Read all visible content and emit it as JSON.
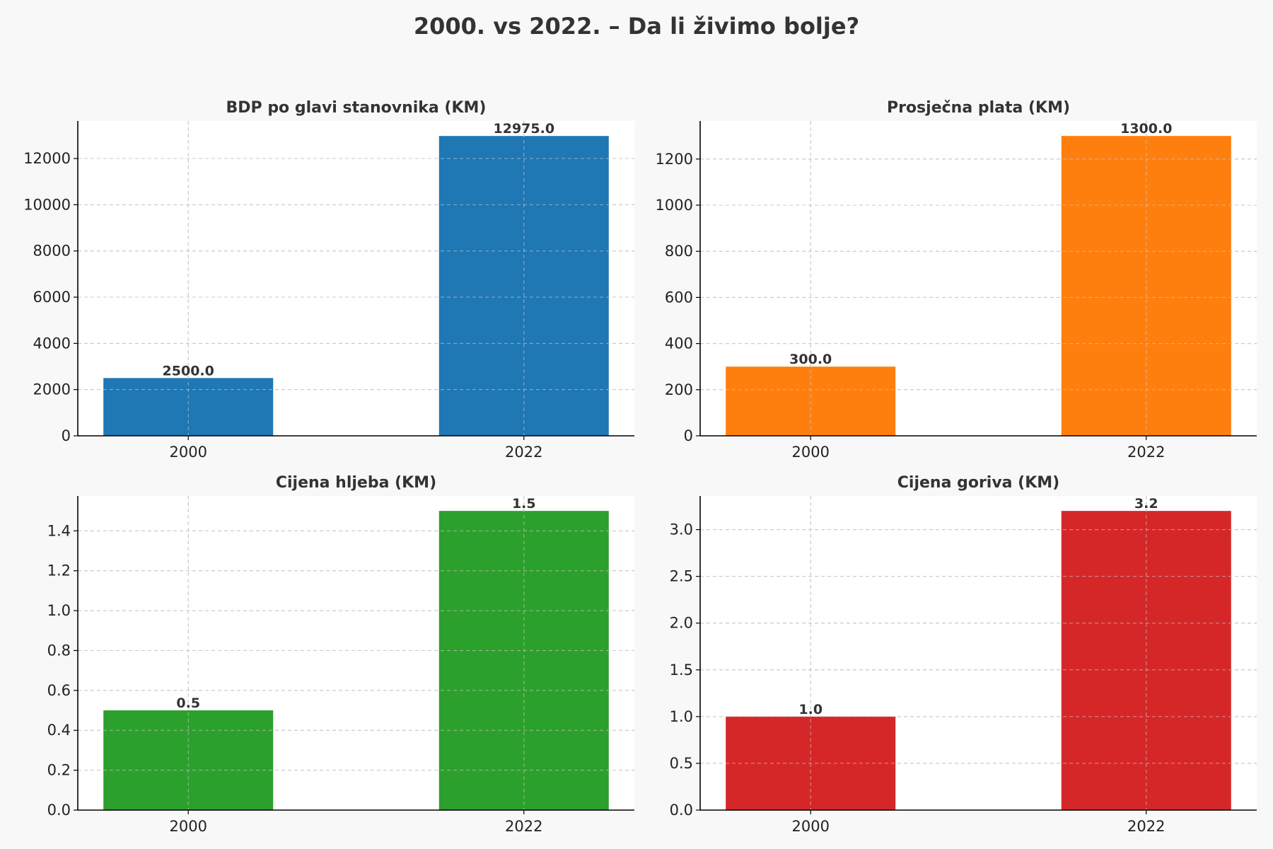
{
  "figure": {
    "title": "2000. vs 2022. – Da li živimo bolje?"
  },
  "chart_data": [
    {
      "type": "bar",
      "title": "BDP po glavi stanovnika (KM)",
      "categories": [
        "2000",
        "2022"
      ],
      "values": [
        2500.0,
        12975.0
      ],
      "value_labels": [
        "2500.0",
        "12975.0"
      ],
      "xlabel": "",
      "ylabel": "",
      "ylim": [
        0,
        13624
      ],
      "yticks": [
        0,
        2000,
        4000,
        6000,
        8000,
        10000,
        12000
      ],
      "ytick_labels": [
        "0",
        "2000",
        "4000",
        "6000",
        "8000",
        "10000",
        "12000"
      ],
      "color": "#1f77b4",
      "grid": true
    },
    {
      "type": "bar",
      "title": "Prosječna plata (KM)",
      "categories": [
        "2000",
        "2022"
      ],
      "values": [
        300.0,
        1300.0
      ],
      "value_labels": [
        "300.0",
        "1300.0"
      ],
      "xlabel": "",
      "ylabel": "",
      "ylim": [
        0,
        1365
      ],
      "yticks": [
        0,
        200,
        400,
        600,
        800,
        1000,
        1200
      ],
      "ytick_labels": [
        "0",
        "200",
        "400",
        "600",
        "800",
        "1000",
        "1200"
      ],
      "color": "#ff7f0e",
      "grid": true
    },
    {
      "type": "bar",
      "title": "Cijena hljeba (KM)",
      "categories": [
        "2000",
        "2022"
      ],
      "values": [
        0.5,
        1.5
      ],
      "value_labels": [
        "0.5",
        "1.5"
      ],
      "xlabel": "",
      "ylabel": "",
      "ylim": [
        0,
        1.575
      ],
      "yticks": [
        0.0,
        0.2,
        0.4,
        0.6,
        0.8,
        1.0,
        1.2,
        1.4
      ],
      "ytick_labels": [
        "0.0",
        "0.2",
        "0.4",
        "0.6",
        "0.8",
        "1.0",
        "1.2",
        "1.4"
      ],
      "color": "#2ca02c",
      "grid": true
    },
    {
      "type": "bar",
      "title": "Cijena goriva (KM)",
      "categories": [
        "2000",
        "2022"
      ],
      "values": [
        1.0,
        3.2
      ],
      "value_labels": [
        "1.0",
        "3.2"
      ],
      "xlabel": "",
      "ylabel": "",
      "ylim": [
        0,
        3.36
      ],
      "yticks": [
        0.0,
        0.5,
        1.0,
        1.5,
        2.0,
        2.5,
        3.0
      ],
      "ytick_labels": [
        "0.0",
        "0.5",
        "1.0",
        "1.5",
        "2.0",
        "2.5",
        "3.0"
      ],
      "color": "#d62728",
      "grid": true
    }
  ]
}
